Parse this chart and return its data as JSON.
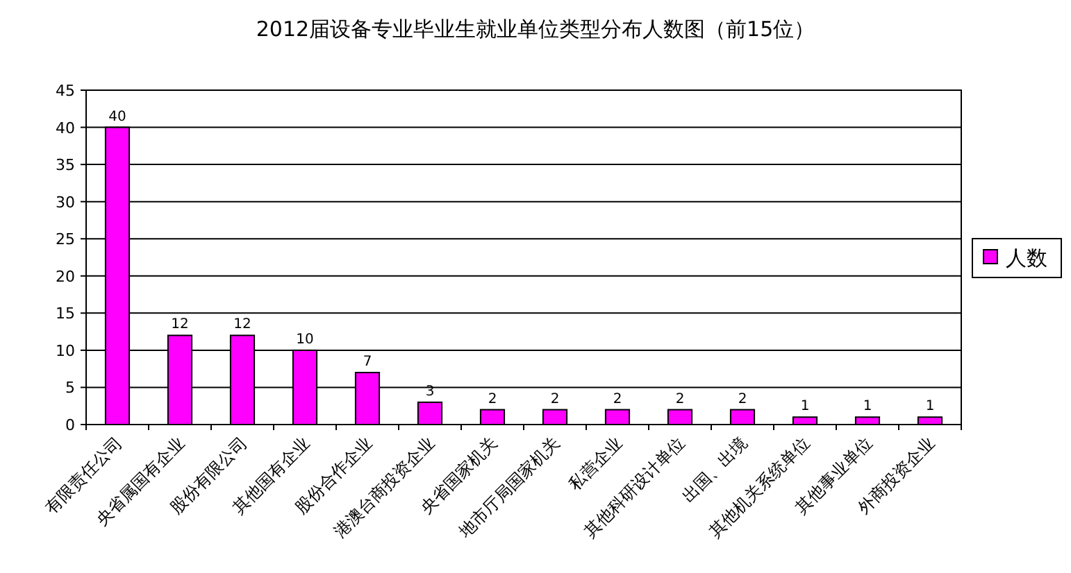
{
  "chart_data": {
    "type": "bar",
    "title": "2012届设备专业毕业生就业单位类型分布人数图（前15位）",
    "categories": [
      "有限责任公司",
      "央省属国有企业",
      "股份有限公司",
      "其他国有企业",
      "股份合作企业",
      "港澳台商投资企业",
      "央省国家机关",
      "地市厅局国家机关",
      "私营企业",
      "其他科研设计单位",
      "出国、出境",
      "其他机关系统单位",
      "其他事业单位",
      "外商投资企业"
    ],
    "series": [
      {
        "name": "人数",
        "color": "#ff00ff",
        "values": [
          40,
          12,
          12,
          10,
          7,
          3,
          2,
          2,
          2,
          2,
          2,
          1,
          1,
          1
        ]
      }
    ],
    "ylim": [
      0,
      45
    ],
    "yticks": [
      0,
      5,
      10,
      15,
      20,
      25,
      30,
      35,
      40,
      45
    ],
    "grid": "y",
    "legend": "right",
    "data_labels": true
  }
}
